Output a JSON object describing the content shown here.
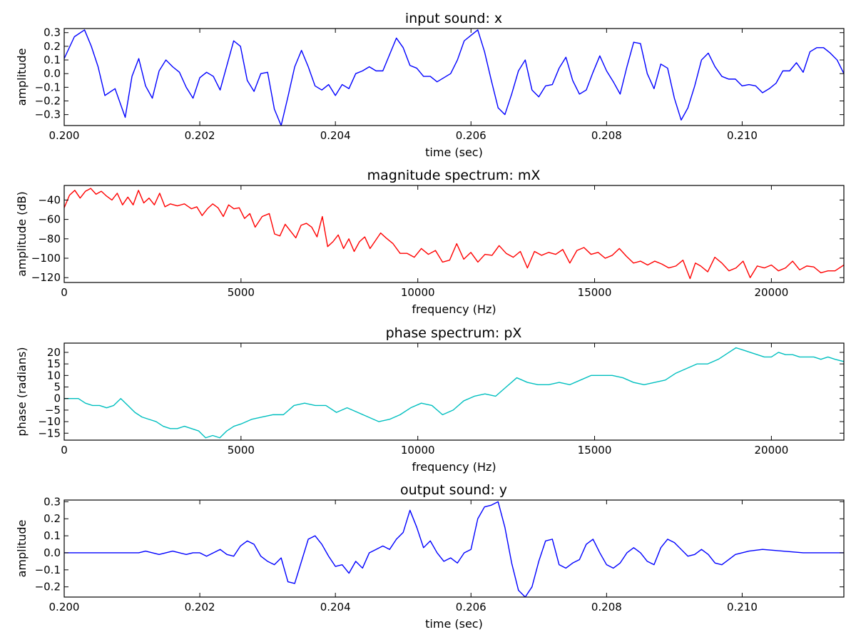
{
  "chart_data": [
    {
      "type": "line",
      "title": "input sound: x",
      "xlabel": "time (sec)",
      "ylabel": "amplitude",
      "xlim": [
        0.2,
        0.2115
      ],
      "ylim": [
        -0.38,
        0.33
      ],
      "xticks": [
        0.2,
        0.202,
        0.204,
        0.206,
        0.208,
        0.21
      ],
      "xtick_labels": [
        "0.200",
        "0.202",
        "0.204",
        "0.206",
        "0.208",
        "0.210"
      ],
      "yticks": [
        0.3,
        0.2,
        0.1,
        0.0,
        -0.1,
        -0.2,
        -0.3
      ],
      "ytick_labels": [
        "0.3",
        "0.2",
        "0.1",
        "0.0",
        "−0.1",
        "−0.2",
        "−0.3"
      ],
      "grid": false,
      "series": [
        {
          "color": "#0000ff",
          "x": [
            0.2,
            0.20015,
            0.2003,
            0.2004,
            0.2005,
            0.2006,
            0.20075,
            0.2009,
            0.201,
            0.2011,
            0.2012,
            0.2013,
            0.2014,
            0.2015,
            0.2016,
            0.2017,
            0.2018,
            0.2019,
            0.202,
            0.2021,
            0.2022,
            0.2023,
            0.2024,
            0.2025,
            0.2026,
            0.2027,
            0.2028,
            0.2029,
            0.203,
            0.2031,
            0.2032,
            0.2033,
            0.2034,
            0.2035,
            0.2036,
            0.2037,
            0.2038,
            0.2039,
            0.204,
            0.2041,
            0.2042,
            0.2043,
            0.2044,
            0.2045,
            0.2046,
            0.2047,
            0.2048,
            0.2049,
            0.205,
            0.2051,
            0.2052,
            0.2053,
            0.2054,
            0.2055,
            0.2056,
            0.2057,
            0.2058,
            0.2059,
            0.206,
            0.2061,
            0.2062,
            0.2063,
            0.2064,
            0.2065,
            0.2066,
            0.2067,
            0.2068,
            0.2069,
            0.207,
            0.2071,
            0.2072,
            0.2073,
            0.2074,
            0.2075,
            0.2076,
            0.2077,
            0.2078,
            0.2079,
            0.208,
            0.2081,
            0.2082,
            0.2083,
            0.2084,
            0.2085,
            0.2086,
            0.2087,
            0.2088,
            0.2089,
            0.209,
            0.2091,
            0.2092,
            0.2093,
            0.2094,
            0.2095,
            0.2096,
            0.2097,
            0.2098,
            0.2099,
            0.21,
            0.2101,
            0.2102,
            0.2103,
            0.2104,
            0.2105,
            0.2106,
            0.2107,
            0.2108,
            0.2109,
            0.211,
            0.2111,
            0.2112,
            0.2113,
            0.2114,
            0.2115
          ],
          "y": [
            0.11,
            0.27,
            0.32,
            0.2,
            0.05,
            -0.16,
            -0.11,
            -0.32,
            -0.02,
            0.11,
            -0.09,
            -0.18,
            0.02,
            0.1,
            0.05,
            0.01,
            -0.1,
            -0.18,
            -0.03,
            0.01,
            -0.02,
            -0.12,
            0.06,
            0.24,
            0.2,
            -0.05,
            -0.13,
            0.0,
            0.01,
            -0.26,
            -0.38,
            -0.17,
            0.05,
            0.17,
            0.05,
            -0.09,
            -0.12,
            -0.08,
            -0.16,
            -0.08,
            -0.11,
            0.0,
            0.02,
            0.05,
            0.02,
            0.02,
            0.14,
            0.26,
            0.19,
            0.06,
            0.04,
            -0.02,
            -0.02,
            -0.06,
            -0.03,
            0.0,
            0.1,
            0.24,
            0.28,
            0.32,
            0.16,
            -0.05,
            -0.25,
            -0.3,
            -0.15,
            0.02,
            0.1,
            -0.12,
            -0.17,
            -0.09,
            -0.08,
            0.04,
            0.12,
            -0.05,
            -0.15,
            -0.12,
            0.01,
            0.13,
            0.02,
            -0.06,
            -0.15,
            0.05,
            0.23,
            0.22,
            0.0,
            -0.11,
            0.07,
            0.04,
            -0.18,
            -0.34,
            -0.25,
            -0.09,
            0.1,
            0.15,
            0.05,
            -0.02,
            -0.04,
            -0.04,
            -0.09,
            -0.08,
            -0.09,
            -0.14,
            -0.11,
            -0.07,
            0.02,
            0.02,
            0.08,
            0.01,
            0.16,
            0.19,
            0.19,
            0.15,
            0.1,
            0.0
          ]
        }
      ]
    },
    {
      "type": "line",
      "title": "magnitude spectrum: mX",
      "xlabel": "frequency (Hz)",
      "ylabel": "amplitude (dB)",
      "xlim": [
        0,
        22050
      ],
      "ylim": [
        -125,
        -25
      ],
      "xticks": [
        0,
        5000,
        10000,
        15000,
        20000
      ],
      "xtick_labels": [
        "0",
        "5000",
        "10000",
        "15000",
        "20000"
      ],
      "yticks": [
        -40,
        -60,
        -80,
        -100,
        -120
      ],
      "ytick_labels": [
        "−40",
        "−60",
        "−80",
        "−100",
        "−120"
      ],
      "grid": false,
      "series": [
        {
          "color": "#ff0000",
          "x": [
            0,
            150,
            300,
            450,
            600,
            750,
            900,
            1050,
            1200,
            1350,
            1500,
            1650,
            1800,
            1950,
            2100,
            2250,
            2400,
            2550,
            2700,
            2850,
            3000,
            3200,
            3400,
            3600,
            3750,
            3900,
            4050,
            4200,
            4350,
            4500,
            4650,
            4800,
            4950,
            5100,
            5250,
            5400,
            5600,
            5800,
            5950,
            6100,
            6250,
            6400,
            6550,
            6700,
            6850,
            7000,
            7150,
            7300,
            7450,
            7600,
            7750,
            7900,
            8050,
            8200,
            8350,
            8500,
            8650,
            8800,
            8950,
            9100,
            9300,
            9500,
            9700,
            9900,
            10100,
            10300,
            10500,
            10700,
            10900,
            11100,
            11300,
            11500,
            11700,
            11900,
            12100,
            12300,
            12500,
            12700,
            12900,
            13100,
            13300,
            13500,
            13700,
            13900,
            14100,
            14300,
            14500,
            14700,
            14900,
            15100,
            15300,
            15500,
            15700,
            15900,
            16100,
            16300,
            16500,
            16700,
            16900,
            17100,
            17300,
            17500,
            17700,
            17850,
            18000,
            18200,
            18400,
            18600,
            18800,
            19000,
            19200,
            19400,
            19600,
            19800,
            20000,
            20200,
            20400,
            20600,
            20800,
            21000,
            21200,
            21400,
            21600,
            21800,
            22050
          ],
          "y": [
            -48,
            -35,
            -30,
            -38,
            -31,
            -28,
            -34,
            -31,
            -36,
            -40,
            -33,
            -45,
            -37,
            -45,
            -30,
            -43,
            -38,
            -45,
            -33,
            -47,
            -44,
            -46,
            -44,
            -49,
            -47,
            -56,
            -49,
            -44,
            -48,
            -57,
            -45,
            -49,
            -48,
            -59,
            -54,
            -68,
            -57,
            -54,
            -75,
            -77,
            -65,
            -72,
            -79,
            -66,
            -64,
            -68,
            -78,
            -57,
            -88,
            -83,
            -76,
            -90,
            -80,
            -93,
            -83,
            -78,
            -90,
            -82,
            -74,
            -79,
            -85,
            -95,
            -95,
            -99,
            -90,
            -96,
            -92,
            -104,
            -102,
            -85,
            -101,
            -94,
            -104,
            -96,
            -97,
            -87,
            -95,
            -99,
            -93,
            -110,
            -93,
            -97,
            -94,
            -96,
            -91,
            -105,
            -92,
            -89,
            -96,
            -94,
            -100,
            -97,
            -90,
            -98,
            -105,
            -103,
            -107,
            -103,
            -106,
            -110,
            -108,
            -102,
            -121,
            -105,
            -108,
            -114,
            -99,
            -105,
            -113,
            -110,
            -103,
            -120,
            -108,
            -110,
            -107,
            -113,
            -110,
            -103,
            -112,
            -108,
            -109,
            -115,
            -113,
            -113,
            -107
          ]
        }
      ]
    },
    {
      "type": "line",
      "title": "phase spectrum: pX",
      "xlabel": "frequency (Hz)",
      "ylabel": "phase (radians)",
      "xlim": [
        0,
        22050
      ],
      "ylim": [
        -18,
        24
      ],
      "xticks": [
        0,
        5000,
        10000,
        15000,
        20000
      ],
      "xtick_labels": [
        "0",
        "5000",
        "10000",
        "15000",
        "20000"
      ],
      "yticks": [
        20,
        15,
        10,
        5,
        0,
        -5,
        -10,
        -15
      ],
      "ytick_labels": [
        "20",
        "15",
        "10",
        "5",
        "0",
        "−5",
        "−10",
        "−15"
      ],
      "grid": false,
      "series": [
        {
          "color": "#00bfbf",
          "x": [
            0,
            200,
            400,
            600,
            800,
            1000,
            1200,
            1400,
            1600,
            1800,
            2000,
            2200,
            2400,
            2600,
            2800,
            3000,
            3200,
            3400,
            3600,
            3800,
            4000,
            4200,
            4400,
            4600,
            4800,
            5000,
            5300,
            5600,
            5900,
            6200,
            6500,
            6800,
            7100,
            7400,
            7700,
            8000,
            8300,
            8600,
            8900,
            9200,
            9500,
            9800,
            10100,
            10400,
            10700,
            11000,
            11300,
            11600,
            11900,
            12200,
            12500,
            12800,
            13100,
            13400,
            13700,
            14000,
            14300,
            14600,
            14900,
            15200,
            15500,
            15800,
            16100,
            16400,
            16700,
            17000,
            17300,
            17600,
            17900,
            18200,
            18500,
            18800,
            19000,
            19200,
            19400,
            19600,
            19800,
            20000,
            20200,
            20400,
            20600,
            20800,
            21000,
            21200,
            21400,
            21600,
            21800,
            22050
          ],
          "y": [
            0,
            0,
            0,
            -2,
            -3,
            -3,
            -4,
            -3,
            0,
            -3,
            -6,
            -8,
            -9,
            -10,
            -12,
            -13,
            -13,
            -12,
            -13,
            -14,
            -17,
            -16,
            -17,
            -14,
            -12,
            -11,
            -9,
            -8,
            -7,
            -7,
            -3,
            -2,
            -3,
            -3,
            -6,
            -4,
            -6,
            -8,
            -10,
            -9,
            -7,
            -4,
            -2,
            -3,
            -7,
            -5,
            -1,
            1,
            2,
            1,
            5,
            9,
            7,
            6,
            6,
            7,
            6,
            8,
            10,
            10,
            10,
            9,
            7,
            6,
            7,
            8,
            11,
            13,
            15,
            15,
            17,
            20,
            22,
            21,
            20,
            19,
            18,
            18,
            20,
            19,
            19,
            18,
            18,
            18,
            17,
            18,
            17,
            16
          ]
        }
      ]
    },
    {
      "type": "line",
      "title": "output sound: y",
      "xlabel": "time (sec)",
      "ylabel": "amplitude",
      "xlim": [
        0.2,
        0.2115
      ],
      "ylim": [
        -0.26,
        0.31
      ],
      "xticks": [
        0.2,
        0.202,
        0.204,
        0.206,
        0.208,
        0.21
      ],
      "xtick_labels": [
        "0.200",
        "0.202",
        "0.204",
        "0.206",
        "0.208",
        "0.210"
      ],
      "yticks": [
        0.3,
        0.2,
        0.1,
        0.0,
        -0.1,
        -0.2
      ],
      "ytick_labels": [
        "0.3",
        "0.2",
        "0.1",
        "0.0",
        "−0.1",
        "−0.2"
      ],
      "grid": false,
      "series": [
        {
          "color": "#0000ff",
          "x": [
            0.2,
            0.2004,
            0.2008,
            0.2011,
            0.2012,
            0.2013,
            0.2014,
            0.2015,
            0.2016,
            0.2017,
            0.2018,
            0.2019,
            0.202,
            0.2021,
            0.2022,
            0.2023,
            0.2024,
            0.2025,
            0.2026,
            0.2027,
            0.2028,
            0.2029,
            0.203,
            0.2031,
            0.2032,
            0.2033,
            0.2034,
            0.2035,
            0.2036,
            0.2037,
            0.2038,
            0.2039,
            0.204,
            0.2041,
            0.2042,
            0.2043,
            0.2044,
            0.2045,
            0.2046,
            0.2047,
            0.2048,
            0.2049,
            0.205,
            0.2051,
            0.2052,
            0.2053,
            0.2054,
            0.2055,
            0.2056,
            0.2057,
            0.2058,
            0.2059,
            0.206,
            0.2061,
            0.2062,
            0.2063,
            0.2064,
            0.2065,
            0.2066,
            0.2067,
            0.2068,
            0.2069,
            0.207,
            0.2071,
            0.2072,
            0.2073,
            0.2074,
            0.2075,
            0.2076,
            0.2077,
            0.2078,
            0.2079,
            0.208,
            0.2081,
            0.2082,
            0.2083,
            0.2084,
            0.2085,
            0.2086,
            0.2087,
            0.2088,
            0.2089,
            0.209,
            0.2091,
            0.2092,
            0.2093,
            0.2094,
            0.2095,
            0.2096,
            0.2097,
            0.2098,
            0.2099,
            0.21,
            0.2101,
            0.2103,
            0.2106,
            0.2109,
            0.2112,
            0.2115
          ],
          "y": [
            0.0,
            0.0,
            0.0,
            0.0,
            0.01,
            0.0,
            -0.01,
            0.0,
            0.01,
            0.0,
            -0.01,
            0.0,
            0.0,
            -0.02,
            0.0,
            0.02,
            -0.01,
            -0.02,
            0.04,
            0.07,
            0.05,
            -0.02,
            -0.05,
            -0.07,
            -0.03,
            -0.17,
            -0.18,
            -0.05,
            0.08,
            0.1,
            0.05,
            -0.02,
            -0.08,
            -0.07,
            -0.12,
            -0.05,
            -0.09,
            0.0,
            0.02,
            0.04,
            0.02,
            0.08,
            0.12,
            0.25,
            0.15,
            0.03,
            0.07,
            0.0,
            -0.05,
            -0.03,
            -0.06,
            0.0,
            0.02,
            0.2,
            0.27,
            0.28,
            0.3,
            0.15,
            -0.06,
            -0.22,
            -0.26,
            -0.2,
            -0.05,
            0.07,
            0.08,
            -0.07,
            -0.09,
            -0.06,
            -0.04,
            0.05,
            0.08,
            0.0,
            -0.07,
            -0.09,
            -0.06,
            0.0,
            0.03,
            0.0,
            -0.05,
            -0.07,
            0.03,
            0.08,
            0.06,
            0.02,
            -0.02,
            -0.01,
            0.02,
            -0.01,
            -0.06,
            -0.07,
            -0.04,
            -0.01,
            0.0,
            0.01,
            0.02,
            0.01,
            0.0,
            0.0,
            0.0
          ]
        }
      ]
    }
  ]
}
